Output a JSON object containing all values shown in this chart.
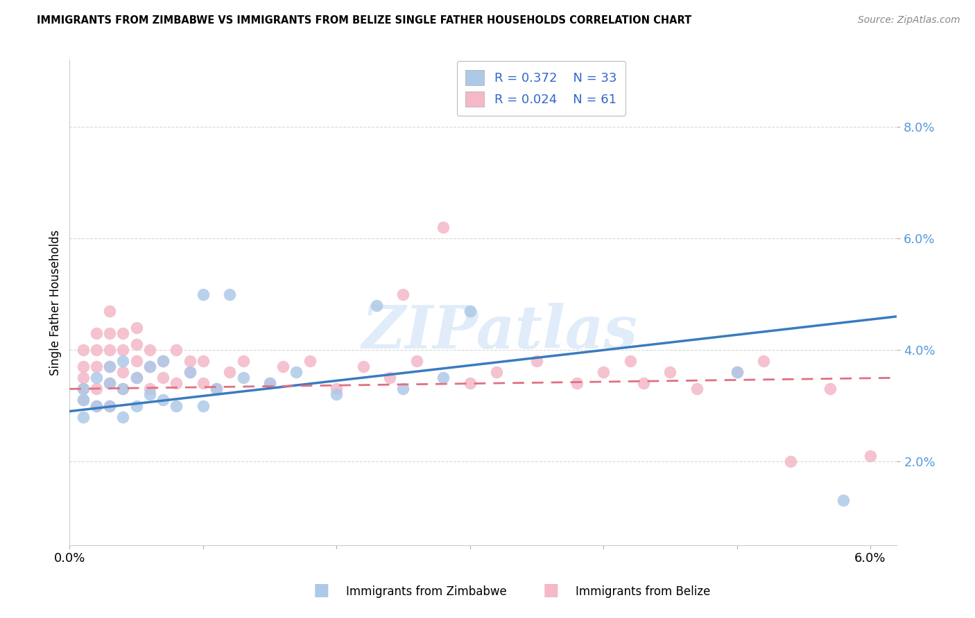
{
  "title": "IMMIGRANTS FROM ZIMBABWE VS IMMIGRANTS FROM BELIZE SINGLE FATHER HOUSEHOLDS CORRELATION CHART",
  "source": "Source: ZipAtlas.com",
  "ylabel": "Single Father Households",
  "xlim": [
    0.0,
    0.062
  ],
  "ylim": [
    0.005,
    0.092
  ],
  "yticks": [
    0.02,
    0.04,
    0.06,
    0.08
  ],
  "xticks": [
    0.0,
    0.01,
    0.02,
    0.03,
    0.04,
    0.05,
    0.06
  ],
  "ytick_labels": [
    "2.0%",
    "4.0%",
    "6.0%",
    "8.0%"
  ],
  "background_color": "#ffffff",
  "grid_color": "#d0d0d0",
  "watermark": "ZIPatlas",
  "color_zimbabwe": "#aec9e8",
  "color_belize": "#f4b8c8",
  "trend_color_zimbabwe": "#3a7bbf",
  "trend_color_belize": "#e07080",
  "legend_label1": "Immigrants from Zimbabwe",
  "legend_label2": "Immigrants from Belize",
  "zimbabwe_x": [
    0.001,
    0.001,
    0.001,
    0.002,
    0.002,
    0.003,
    0.003,
    0.003,
    0.004,
    0.004,
    0.004,
    0.005,
    0.005,
    0.006,
    0.006,
    0.007,
    0.007,
    0.008,
    0.009,
    0.01,
    0.01,
    0.011,
    0.012,
    0.013,
    0.015,
    0.017,
    0.02,
    0.023,
    0.025,
    0.028,
    0.03,
    0.05,
    0.058
  ],
  "zimbabwe_y": [
    0.028,
    0.031,
    0.033,
    0.03,
    0.035,
    0.03,
    0.034,
    0.037,
    0.028,
    0.033,
    0.038,
    0.03,
    0.035,
    0.032,
    0.037,
    0.031,
    0.038,
    0.03,
    0.036,
    0.03,
    0.05,
    0.033,
    0.05,
    0.035,
    0.034,
    0.036,
    0.032,
    0.048,
    0.033,
    0.035,
    0.047,
    0.036,
    0.013
  ],
  "belize_x": [
    0.001,
    0.001,
    0.001,
    0.001,
    0.001,
    0.002,
    0.002,
    0.002,
    0.002,
    0.002,
    0.003,
    0.003,
    0.003,
    0.003,
    0.003,
    0.003,
    0.004,
    0.004,
    0.004,
    0.004,
    0.005,
    0.005,
    0.005,
    0.005,
    0.006,
    0.006,
    0.006,
    0.007,
    0.007,
    0.008,
    0.008,
    0.009,
    0.009,
    0.01,
    0.01,
    0.011,
    0.012,
    0.013,
    0.015,
    0.016,
    0.018,
    0.02,
    0.022,
    0.024,
    0.025,
    0.026,
    0.028,
    0.03,
    0.032,
    0.035,
    0.038,
    0.04,
    0.042,
    0.043,
    0.045,
    0.047,
    0.05,
    0.052,
    0.054,
    0.057,
    0.06
  ],
  "belize_y": [
    0.031,
    0.033,
    0.035,
    0.037,
    0.04,
    0.03,
    0.033,
    0.037,
    0.04,
    0.043,
    0.03,
    0.034,
    0.037,
    0.04,
    0.043,
    0.047,
    0.033,
    0.036,
    0.04,
    0.043,
    0.035,
    0.038,
    0.041,
    0.044,
    0.033,
    0.037,
    0.04,
    0.035,
    0.038,
    0.034,
    0.04,
    0.036,
    0.038,
    0.034,
    0.038,
    0.033,
    0.036,
    0.038,
    0.034,
    0.037,
    0.038,
    0.033,
    0.037,
    0.035,
    0.05,
    0.038,
    0.062,
    0.034,
    0.036,
    0.038,
    0.034,
    0.036,
    0.038,
    0.034,
    0.036,
    0.033,
    0.036,
    0.038,
    0.02,
    0.033,
    0.021
  ],
  "zim_trend_x0": 0.0,
  "zim_trend_y0": 0.029,
  "zim_trend_x1": 0.062,
  "zim_trend_y1": 0.046,
  "bel_trend_x0": 0.0,
  "bel_trend_y0": 0.033,
  "bel_trend_x1": 0.062,
  "bel_trend_y1": 0.035
}
